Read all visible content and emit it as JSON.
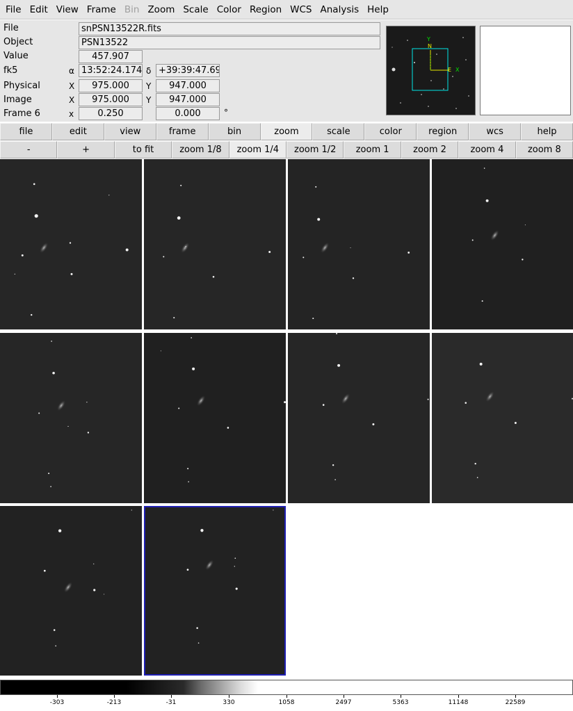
{
  "menu": [
    "File",
    "Edit",
    "View",
    "Frame",
    "Bin",
    "Zoom",
    "Scale",
    "Color",
    "Region",
    "WCS",
    "Analysis",
    "Help"
  ],
  "menu_disabled": [
    "Bin"
  ],
  "info": {
    "file_label": "File",
    "file_value": "snPSN13522R.fits",
    "object_label": "Object",
    "object_value": "PSN13522",
    "value_label": "Value",
    "value_value": "457.907",
    "fk5_label": "fk5",
    "alpha_symbol": "α",
    "alpha_value": "13:52:24.174",
    "delta_symbol": "δ",
    "delta_value": "+39:39:47.69",
    "physical_label": "Physical",
    "physical_x_label": "X",
    "physical_x": "975.000",
    "physical_y_label": "Y",
    "physical_y": "947.000",
    "image_label": "Image",
    "image_x_label": "X",
    "image_x": "975.000",
    "image_y_label": "Y",
    "image_y": "947.000",
    "frame_label": "Frame 6",
    "frame_x_label": "x",
    "frame_zoom": "0.250",
    "frame_angle": "0.000",
    "degree_symbol": "°"
  },
  "panner": {
    "compass_n": "N",
    "compass_e": "E",
    "axis_y": "Y",
    "axis_x": "X"
  },
  "buttons_main": [
    "file",
    "edit",
    "view",
    "frame",
    "bin",
    "zoom",
    "scale",
    "color",
    "region",
    "wcs",
    "help"
  ],
  "buttons_main_active": "zoom",
  "buttons_zoom": [
    "-",
    "+",
    "to fit",
    "zoom 1/8",
    "zoom 1/4",
    "zoom 1/2",
    "zoom 1",
    "zoom 2",
    "zoom 4",
    "zoom 8"
  ],
  "buttons_zoom_active": "zoom 1/4",
  "frames_count": 10,
  "current_frame_index": 9,
  "colorbar_ticks": [
    "-303",
    "-213",
    "-31",
    "330",
    "1058",
    "2497",
    "5363",
    "11148",
    "22589"
  ],
  "colors": {
    "ui_bg": "#e6e6e6",
    "current_frame_border": "#1f1fb4",
    "panner_box": "#00e5e5",
    "compass": "#e6e600"
  }
}
